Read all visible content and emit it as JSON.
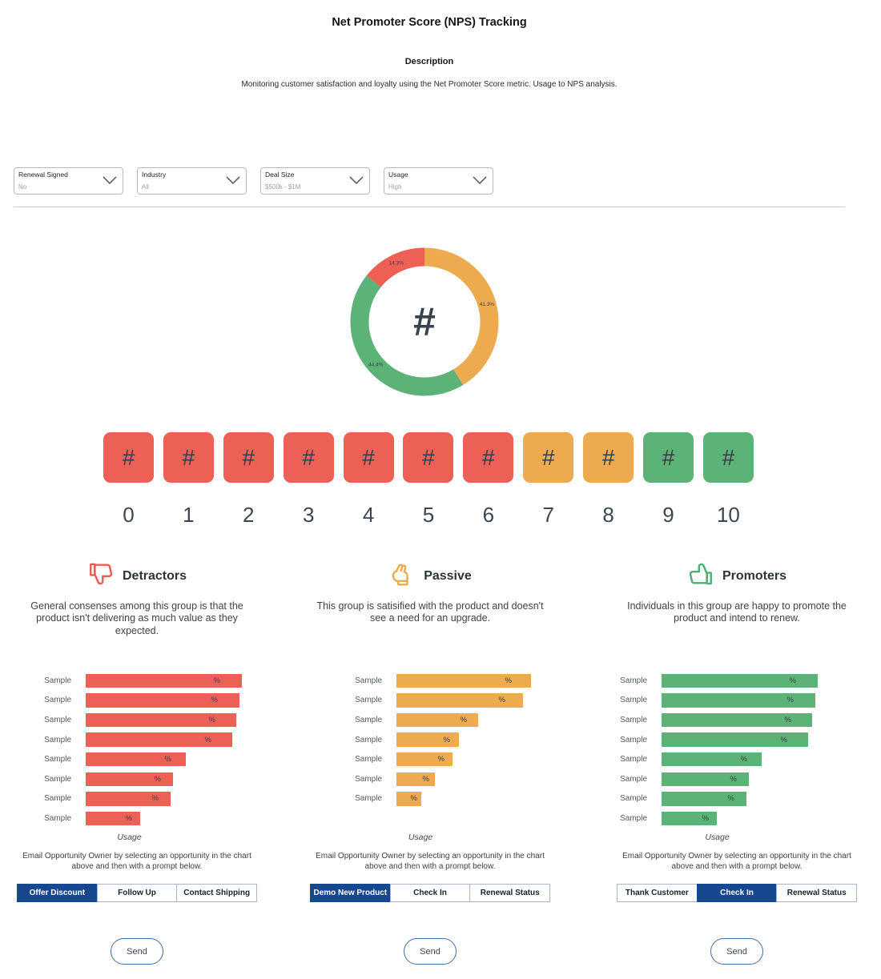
{
  "page": {
    "title": "Net Promoter Score (NPS) Tracking",
    "description_label": "Description",
    "description_text": "Monitoring customer satisfaction and loyalty using the Net Promoter Score metric. Usage to NPS analysis."
  },
  "filters": [
    {
      "label": "Renewal Signed",
      "value": "No"
    },
    {
      "label": "Industry",
      "value": "All"
    },
    {
      "label": "Deal Size",
      "value": "$500k - $1M"
    },
    {
      "label": "Usage",
      "value": "High"
    }
  ],
  "colors": {
    "detractor": "#ec6056",
    "passive": "#edaa4e",
    "promoter": "#5bb377",
    "selected_button": "#17478e"
  },
  "chart_data": [
    {
      "type": "pie",
      "title": "NPS group distribution (donut)",
      "donut": true,
      "center_label": "#",
      "legend_position": "none",
      "slices": [
        {
          "name": "Passive",
          "value": 41.3,
          "label": "41.3%",
          "color": "#edaa4e"
        },
        {
          "name": "Promoters",
          "value": 44.4,
          "label": "44.4%",
          "color": "#5bb377"
        },
        {
          "name": "Detractors",
          "value": 14.3,
          "label": "14.3%",
          "color": "#ec6056"
        }
      ]
    },
    {
      "type": "bar",
      "orientation": "horizontal",
      "title": "Detractors opportunities by Usage",
      "categories": [
        "Sample",
        "Sample",
        "Sample",
        "Sample",
        "Sample",
        "Sample",
        "Sample",
        "Sample"
      ],
      "value_labels": [
        "%",
        "%",
        "%",
        "%",
        "%",
        "%",
        "%",
        "%"
      ],
      "values_relative": [
        1.0,
        0.985,
        0.965,
        0.94,
        0.64,
        0.56,
        0.545,
        0.35
      ],
      "xlabel": "Usage",
      "color": "#ec6056",
      "grid": false
    },
    {
      "type": "bar",
      "orientation": "horizontal",
      "title": "Passive opportunities by Usage",
      "categories": [
        "Sample",
        "Sample",
        "Sample",
        "Sample",
        "Sample",
        "Sample",
        "Sample"
      ],
      "value_labels": [
        "%",
        "%",
        "%",
        "%",
        "%",
        "%",
        "%"
      ],
      "values_relative": [
        1.0,
        0.94,
        0.61,
        0.465,
        0.416,
        0.283,
        0.182
      ],
      "xlabel": "Usage",
      "color": "#edaa4e",
      "grid": false
    },
    {
      "type": "bar",
      "orientation": "horizontal",
      "title": "Promoters opportunities by Usage",
      "categories": [
        "Sample",
        "Sample",
        "Sample",
        "Sample",
        "Sample",
        "Sample",
        "Sample",
        "Sample"
      ],
      "value_labels": [
        "%",
        "%",
        "%",
        "%",
        "%",
        "%",
        "%",
        "%"
      ],
      "values_relative": [
        1.0,
        0.983,
        0.966,
        0.94,
        0.64,
        0.557,
        0.543,
        0.353
      ],
      "xlabel": "Usage",
      "color": "#5bb377",
      "grid": false
    }
  ],
  "scale": {
    "cell_label": "#",
    "items": [
      {
        "score": "0",
        "group": "detractor"
      },
      {
        "score": "1",
        "group": "detractor"
      },
      {
        "score": "2",
        "group": "detractor"
      },
      {
        "score": "3",
        "group": "detractor"
      },
      {
        "score": "4",
        "group": "detractor"
      },
      {
        "score": "5",
        "group": "detractor"
      },
      {
        "score": "6",
        "group": "detractor"
      },
      {
        "score": "7",
        "group": "passive"
      },
      {
        "score": "8",
        "group": "passive"
      },
      {
        "score": "9",
        "group": "promoter"
      },
      {
        "score": "10",
        "group": "promoter"
      }
    ]
  },
  "sections": [
    {
      "heading": "Detractors",
      "group": "detractor",
      "description": "General consenses among this group is that the product isn't delivering as much value as they expected.",
      "email_prompt": "Email Opportunity Owner by selecting an opportunity in the chart above and then with a prompt below.",
      "buttons": [
        {
          "label": "Offer Discount",
          "selected": true
        },
        {
          "label": "Follow Up",
          "selected": false
        },
        {
          "label": "Contact Shipping",
          "selected": false
        }
      ],
      "send_label": "Send"
    },
    {
      "heading": "Passive",
      "group": "passive",
      "description": "This group is satisified with the product and doesn't see a need for an upgrade.",
      "email_prompt": "Email Opportunity Owner by selecting an opportunity in the chart above and then with a prompt below.",
      "buttons": [
        {
          "label": "Demo New Product",
          "selected": true
        },
        {
          "label": "Check In",
          "selected": false
        },
        {
          "label": "Renewal Status",
          "selected": false
        }
      ],
      "send_label": "Send"
    },
    {
      "heading": "Promoters",
      "group": "promoter",
      "description": "Individuals in this group are happy to promote the product and intend to renew.",
      "email_prompt": "Email Opportunity Owner by selecting an opportunity in the chart above and then with a prompt below.",
      "buttons": [
        {
          "label": "Thank Customer",
          "selected": false
        },
        {
          "label": "Check In",
          "selected": true
        },
        {
          "label": "Renewal Status",
          "selected": false
        }
      ],
      "send_label": "Send"
    }
  ]
}
